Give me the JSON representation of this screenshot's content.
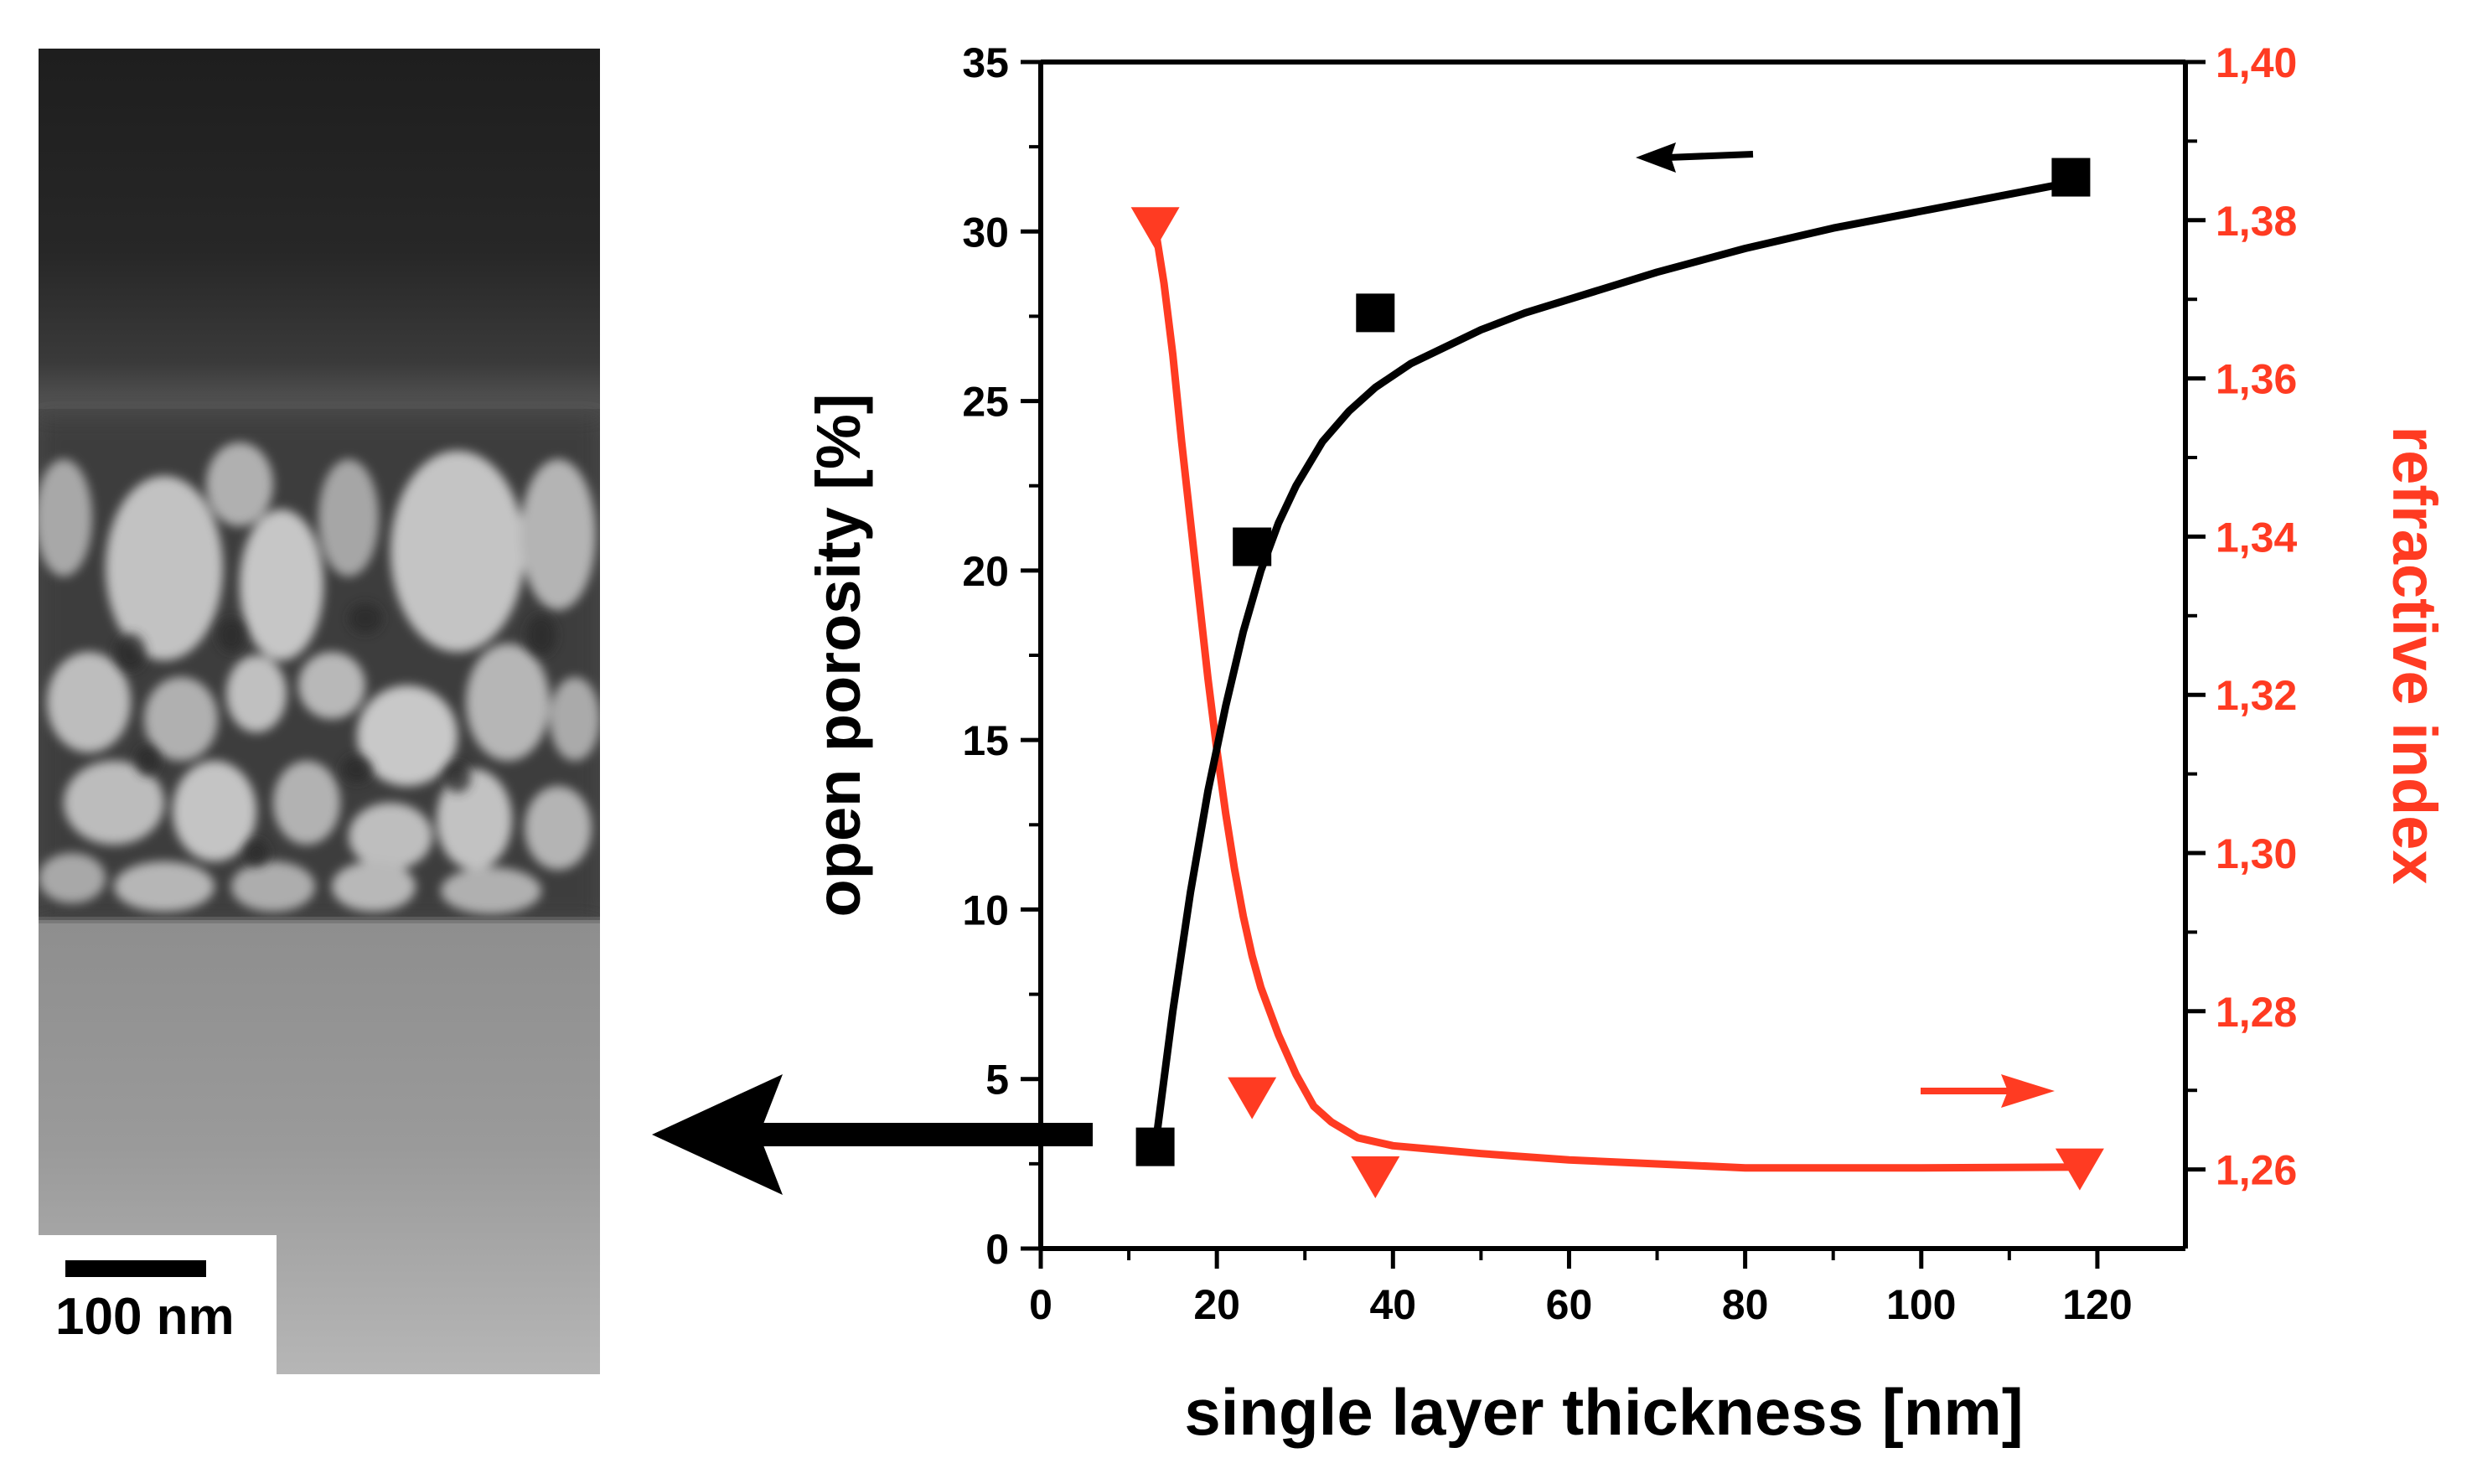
{
  "sem_image": {
    "scale_bar_label": "100 nm",
    "description_layers": [
      "dark-background",
      "porous-film",
      "substrate"
    ]
  },
  "colors": {
    "left_axis": "#000000",
    "right_axis": "#ff3b22",
    "fit_red": "#ff3b22",
    "fit_black": "#000000"
  },
  "chart_data": {
    "type": "scatter",
    "xlabel": "single layer thickness [nm]",
    "ylabel": "open porosity [%]",
    "y2label": "refractive index",
    "xlim": [
      0,
      130
    ],
    "ylim": [
      0,
      35
    ],
    "y2lim": [
      1.25,
      1.4
    ],
    "x_ticks": [
      "0",
      "20",
      "40",
      "60",
      "80",
      "100",
      "120"
    ],
    "x_tick_values": [
      0,
      20,
      40,
      60,
      80,
      100,
      120
    ],
    "y_ticks": [
      "0",
      "5",
      "10",
      "15",
      "20",
      "25",
      "30",
      "35"
    ],
    "y_tick_values": [
      0,
      5,
      10,
      15,
      20,
      25,
      30,
      35
    ],
    "y2_ticks": [
      "1,26",
      "1,28",
      "1,30",
      "1,32",
      "1,34",
      "1,36",
      "1,38",
      "1,40"
    ],
    "y2_tick_values": [
      1.26,
      1.28,
      1.3,
      1.32,
      1.34,
      1.36,
      1.38,
      1.4
    ],
    "series": [
      {
        "name": "open porosity",
        "axis": "left",
        "marker": "square",
        "x": [
          13,
          24,
          38,
          117
        ],
        "y": [
          3.0,
          20.7,
          27.6,
          31.6
        ],
        "fit_x": [
          13,
          15,
          17,
          19,
          21,
          23,
          25,
          27,
          29,
          32,
          35,
          38,
          42,
          46,
          50,
          55,
          60,
          70,
          80,
          90,
          100,
          110,
          118
        ],
        "fit_y": [
          3.0,
          7.0,
          10.5,
          13.5,
          16.0,
          18.2,
          20.0,
          21.4,
          22.5,
          23.8,
          24.7,
          25.4,
          26.1,
          26.6,
          27.1,
          27.6,
          28.0,
          28.8,
          29.5,
          30.1,
          30.6,
          31.1,
          31.5
        ]
      },
      {
        "name": "refractive index",
        "axis": "right",
        "marker": "triangle-down",
        "x": [
          13,
          24,
          38,
          118
        ],
        "y": [
          1.379,
          1.269,
          1.259,
          1.26
        ],
        "fit_x": [
          13,
          14,
          15,
          16,
          17,
          18,
          19,
          20,
          21,
          22,
          23,
          24,
          25,
          27,
          29,
          31,
          33,
          36,
          40,
          45,
          50,
          60,
          80,
          100,
          118
        ],
        "fit_y": [
          1.379,
          1.372,
          1.363,
          1.352,
          1.342,
          1.332,
          1.322,
          1.313,
          1.305,
          1.298,
          1.292,
          1.287,
          1.283,
          1.277,
          1.272,
          1.268,
          1.266,
          1.264,
          1.263,
          1.2625,
          1.262,
          1.2612,
          1.2602,
          1.2602,
          1.2603
        ]
      }
    ],
    "annotations": [
      {
        "type": "arrow",
        "points_to": "left-axis",
        "color": "#000000"
      },
      {
        "type": "arrow",
        "points_to": "right-axis",
        "color": "#ff3b22"
      },
      {
        "type": "big-arrow",
        "from": "first-data-point",
        "to": "sem-image",
        "color": "#000000"
      }
    ]
  }
}
